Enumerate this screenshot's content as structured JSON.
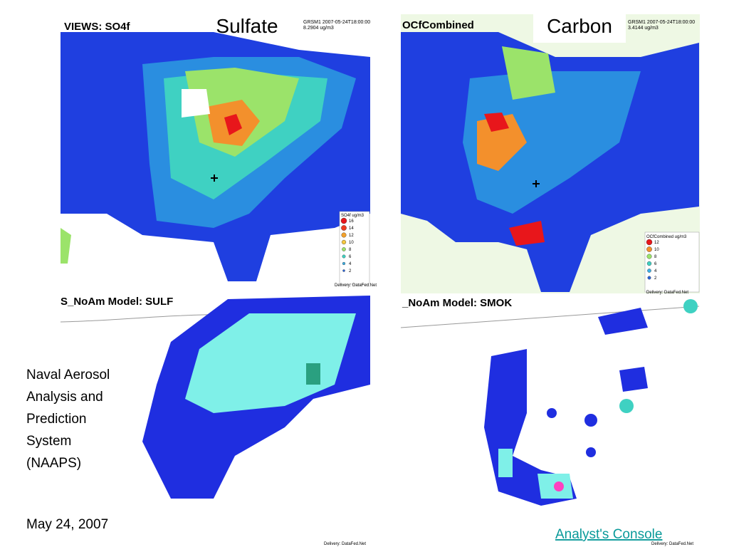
{
  "titles": {
    "left": "Sulfate",
    "right": "Carbon"
  },
  "maps": [
    {
      "header": "VIEWS: SO4f",
      "station": "GRSM1 2007-05-24T18:00:00",
      "reading": "8.2904 ug/m3",
      "legend": {
        "title": "SO4f ug/m3",
        "items": [
          {
            "label": "16",
            "color": "#e8161b"
          },
          {
            "label": "14",
            "color": "#ef3a1f"
          },
          {
            "label": "12",
            "color": "#f3a12c"
          },
          {
            "label": "10",
            "color": "#f6c83f"
          },
          {
            "label": "8",
            "color": "#9be36a"
          },
          {
            "label": "6",
            "color": "#3fd1c2"
          },
          {
            "label": "4",
            "color": "#3bb0e6"
          },
          {
            "label": "2",
            "color": "#2a63d8"
          }
        ]
      },
      "credit": "Delivery: DataFed.Net"
    },
    {
      "header": "OCfCombined",
      "station": "GRSM1 2007-05-24T18:00:00",
      "reading": "3.4144 ug/m3",
      "legend": {
        "title": "OCfCombined ug/m3",
        "items": [
          {
            "label": "12",
            "color": "#e8161b"
          },
          {
            "label": "10",
            "color": "#f3902c"
          },
          {
            "label": "8",
            "color": "#9be36a"
          },
          {
            "label": "6",
            "color": "#3fd1c2"
          },
          {
            "label": "4",
            "color": "#3bb0e6"
          },
          {
            "label": "2",
            "color": "#2a63d8"
          }
        ]
      },
      "credit": "Delivery: DataFed.Net"
    },
    {
      "header": "S_NoAm Model: SULF",
      "credit": "Delivery: DataFed.Net"
    },
    {
      "header": "_NoAm Model: SMOK",
      "credit": "Delivery: DataFed.Net"
    }
  ],
  "caption": [
    "Naval Aerosol",
    "Analysis and",
    "Prediction",
    "System",
    "(NAAPS)"
  ],
  "date": "May 24, 2007",
  "link": "Analyst's Console"
}
